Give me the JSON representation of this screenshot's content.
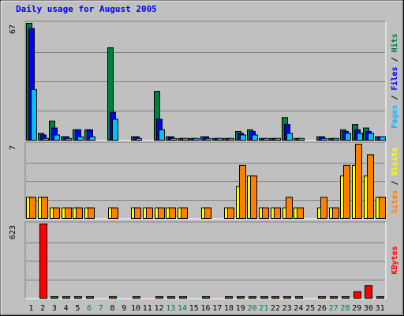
{
  "chart_data": {
    "type": "bar",
    "title": "Daily usage for August 2005",
    "days": [
      "1",
      "2",
      "3",
      "4",
      "5",
      "6",
      "7",
      "8",
      "9",
      "10",
      "11",
      "12",
      "13",
      "14",
      "15",
      "16",
      "17",
      "18",
      "19",
      "20",
      "21",
      "22",
      "23",
      "24",
      "25",
      "26",
      "27",
      "28",
      "29",
      "30",
      "31"
    ],
    "weekend_days": [
      "6",
      "7",
      "13",
      "14",
      "20",
      "21",
      "27",
      "28"
    ],
    "panels": [
      {
        "id": "hits-files-pages",
        "ymax_label": "67",
        "ymax": 67,
        "ylim": [
          0,
          67
        ],
        "axis_label_parts": [
          {
            "text": "Pages",
            "color": "#00C0FF"
          },
          {
            "text": " / ",
            "color": "#000000"
          },
          {
            "text": "Files",
            "color": "#0000FF"
          },
          {
            "text": " / ",
            "color": "#000000"
          },
          {
            "text": "Hits",
            "color": "#008040"
          }
        ],
        "series": [
          {
            "name": "Hits",
            "color": "#008040",
            "values": [
              67,
              4,
              11,
              2,
              6,
              6,
              0,
              53,
              0,
              2,
              0,
              28,
              2,
              1,
              1,
              2,
              1,
              1,
              5,
              6,
              1,
              1,
              13,
              1,
              0,
              2,
              1,
              6,
              9,
              7,
              2
            ]
          },
          {
            "name": "Files",
            "color": "#0000FF",
            "values": [
              64,
              3,
              7,
              2,
              6,
              6,
              0,
              16,
              0,
              2,
              0,
              12,
              2,
              1,
              1,
              2,
              1,
              1,
              4,
              5,
              1,
              1,
              9,
              1,
              0,
              2,
              1,
              5,
              6,
              5,
              2
            ]
          },
          {
            "name": "Pages",
            "color": "#00C0FF",
            "values": [
              29,
              1,
              3,
              1,
              2,
              2,
              0,
              12,
              0,
              1,
              0,
              6,
              1,
              1,
              1,
              1,
              1,
              1,
              3,
              3,
              1,
              1,
              4,
              1,
              0,
              1,
              1,
              4,
              4,
              4,
              2
            ]
          }
        ]
      },
      {
        "id": "visits-sites",
        "ymax_label": "7",
        "ymax": 7,
        "ylim": [
          0,
          7
        ],
        "axis_label_parts": [
          {
            "text": "Sites",
            "color": "#FF8000"
          },
          {
            "text": " / ",
            "color": "#000000"
          },
          {
            "text": "Visits",
            "color": "#FFFF00"
          }
        ],
        "series": [
          {
            "name": "Visits",
            "color": "#FFFF00",
            "values": [
              2,
              2,
              1,
              1,
              1,
              1,
              0,
              1,
              0,
              1,
              1,
              1,
              1,
              1,
              0,
              1,
              0,
              1,
              3,
              4,
              1,
              1,
              1,
              1,
              0,
              1,
              1,
              4,
              5,
              4,
              2
            ]
          },
          {
            "name": "Sites",
            "color": "#FF8000",
            "values": [
              2,
              2,
              1,
              1,
              1,
              1,
              0,
              1,
              0,
              1,
              1,
              1,
              1,
              1,
              0,
              1,
              0,
              1,
              5,
              4,
              1,
              1,
              2,
              1,
              0,
              2,
              1,
              5,
              7,
              6,
              2
            ]
          }
        ]
      },
      {
        "id": "kbytes",
        "ymax_label": "623",
        "ymax": 623,
        "ylim": [
          0,
          623
        ],
        "axis_label_parts": [
          {
            "text": "KBytes",
            "color": "#FF0000"
          }
        ],
        "series": [
          {
            "name": "KBytes",
            "color": "#FF0000",
            "values": [
              0,
              623,
              6,
              6,
              6,
              6,
              0,
              14,
              0,
              6,
              0,
              12,
              6,
              6,
              0,
              6,
              0,
              6,
              6,
              6,
              6,
              6,
              12,
              6,
              0,
              6,
              6,
              12,
              55,
              105,
              6
            ]
          }
        ]
      }
    ]
  }
}
